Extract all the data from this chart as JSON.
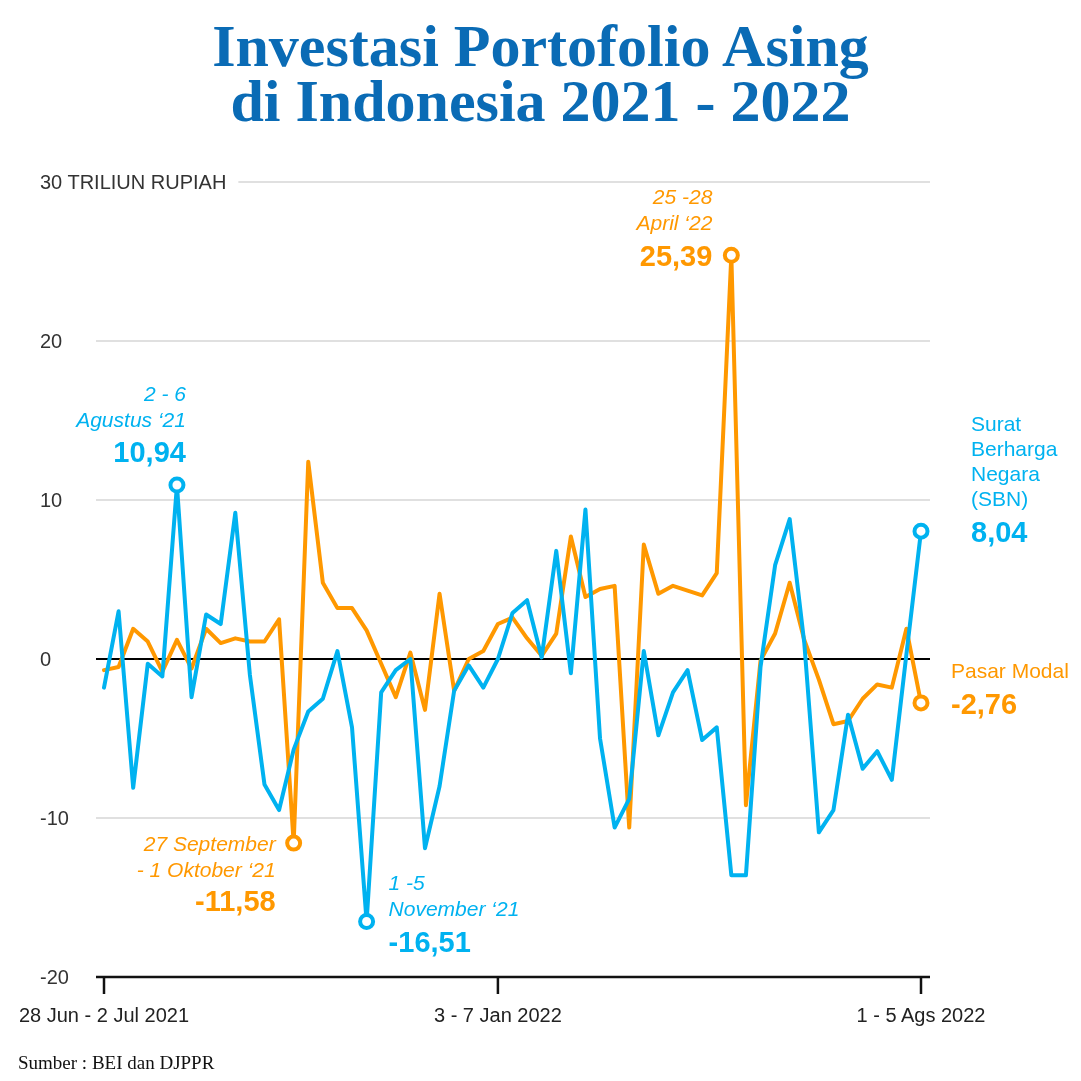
{
  "chart_data": {
    "type": "line",
    "title": "Investasi Portofolio Asing\ndi Indonesia 2021 - 2022",
    "categories": [
      "28 Jun - 2 Jul 2021",
      null,
      null,
      null,
      null,
      null,
      null,
      null,
      null,
      null,
      null,
      null,
      null,
      null,
      null,
      null,
      null,
      null,
      null,
      null,
      null,
      null,
      null,
      null,
      null,
      null,
      null,
      "3 - 7 Jan 2022",
      null,
      null,
      null,
      null,
      null,
      null,
      null,
      null,
      null,
      null,
      null,
      null,
      null,
      null,
      null,
      null,
      null,
      null,
      null,
      null,
      null,
      null,
      null,
      null,
      null,
      null,
      null,
      null,
      "1 - 5 Ags 2022"
    ],
    "series": [
      {
        "name": "Pasar Modal",
        "color": "#ff9800",
        "values": [
          -0.7,
          -0.5,
          1.9,
          1.1,
          -0.8,
          1.2,
          -0.6,
          1.9,
          1.0,
          1.3,
          1.1,
          1.1,
          2.5,
          -11.58,
          12.4,
          4.8,
          3.2,
          3.2,
          1.8,
          -0.3,
          -2.4,
          0.4,
          -3.2,
          4.1,
          -2.0,
          0.0,
          0.5,
          2.2,
          2.6,
          1.3,
          0.2,
          1.6,
          7.7,
          3.9,
          4.4,
          4.6,
          -10.6,
          7.2,
          4.1,
          4.6,
          4.3,
          4.0,
          5.4,
          25.39,
          -9.2,
          -0.1,
          1.6,
          4.8,
          1.2,
          -1.3,
          -4.1,
          -3.9,
          -2.5,
          -1.6,
          -1.8,
          1.9,
          -2.76
        ],
        "value_labels": [
          null,
          null,
          null,
          null,
          null,
          null,
          null,
          null,
          null,
          null,
          null,
          null,
          null,
          "-11,58",
          null,
          null,
          null,
          null,
          null,
          null,
          null,
          null,
          null,
          null,
          null,
          null,
          null,
          null,
          null,
          null,
          null,
          null,
          null,
          null,
          null,
          null,
          null,
          null,
          null,
          null,
          null,
          null,
          null,
          "25,39",
          null,
          null,
          null,
          null,
          null,
          null,
          null,
          null,
          null,
          null,
          null,
          null,
          "-2,76"
        ]
      },
      {
        "name": "Surat Berharga Negara (SBN)",
        "color": "#00b2f0",
        "values": [
          -1.8,
          3.0,
          -8.1,
          -0.3,
          -1.1,
          10.94,
          -2.4,
          2.8,
          2.2,
          9.2,
          -1.0,
          -7.9,
          -9.5,
          -5.7,
          -3.3,
          -2.5,
          0.5,
          -4.3,
          -16.51,
          -2.1,
          -0.7,
          0.0,
          -11.9,
          -8.0,
          -2.0,
          -0.4,
          -1.8,
          0.0,
          2.9,
          3.7,
          0.1,
          6.8,
          -0.9,
          9.4,
          -5.0,
          -10.6,
          -8.8,
          0.5,
          -4.8,
          -2.1,
          -0.7,
          -5.1,
          -4.3,
          -13.6,
          -13.6,
          -0.5,
          5.9,
          8.8,
          1.0,
          -10.9,
          -9.5,
          -3.5,
          -6.9,
          -5.8,
          -7.6,
          0.3,
          8.04
        ],
        "value_labels": [
          null,
          null,
          null,
          null,
          null,
          "10,94",
          null,
          null,
          null,
          null,
          null,
          null,
          null,
          null,
          null,
          null,
          null,
          null,
          "-16,51",
          null,
          null,
          null,
          null,
          null,
          null,
          null,
          null,
          null,
          null,
          null,
          null,
          null,
          null,
          null,
          null,
          null,
          null,
          null,
          null,
          null,
          null,
          null,
          null,
          null,
          null,
          null,
          null,
          null,
          null,
          null,
          null,
          null,
          null,
          null,
          null,
          null,
          "8,04"
        ]
      }
    ],
    "ylim": [
      -20,
      30
    ],
    "yticks": [
      -20,
      -10,
      0,
      10,
      20,
      {
        "value": 30,
        "label": "30 TRILIUN RUPIAH"
      }
    ],
    "grid": "y",
    "ref_lines": [
      {
        "axis": "y",
        "value": 0,
        "color": "#000000"
      }
    ],
    "annotations": [
      "2 - 6\nAgustus ‘21",
      "27 September\n- 1 Oktober ‘21",
      "1 -5\nNovember ‘21",
      "25 -28\nApril ‘22",
      "Sumber : BEI dan DJPPR"
    ]
  }
}
